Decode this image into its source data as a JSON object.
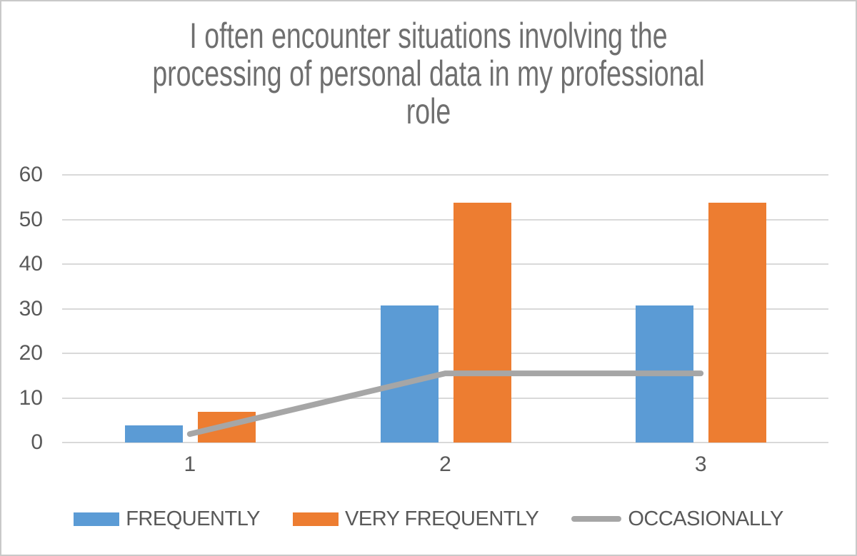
{
  "chart_data": {
    "type": "bar",
    "title": "I often encounter situations involving the processing of personal data in my professional role",
    "title_lines": [
      "I often encounter situations involving the",
      "processing of personal data in my professional",
      "role"
    ],
    "categories": [
      "1",
      "2",
      "3"
    ],
    "series": [
      {
        "name": "FREQUENTLY",
        "type": "bar",
        "color": "#5B9BD5",
        "values": [
          3.8,
          30.8,
          30.8
        ]
      },
      {
        "name": "VERY FREQUENTLY",
        "type": "bar",
        "color": "#ED7D31",
        "values": [
          6.9,
          53.8,
          53.8
        ]
      },
      {
        "name": "OCCASIONALLY",
        "type": "line",
        "color": "#A6A6A6",
        "values": [
          1.9,
          15.5,
          15.5
        ]
      }
    ],
    "xlabel": "",
    "ylabel": "",
    "ylim": [
      0,
      60
    ],
    "yticks": [
      0,
      10,
      20,
      30,
      40,
      50,
      60
    ],
    "grid": true,
    "legend_position": "bottom"
  },
  "colors": {
    "gridline": "#D9D9D9",
    "axis_text": "#595959",
    "title_text": "#6f6f6f",
    "border": "#c9c9c9",
    "background": "#ffffff"
  }
}
